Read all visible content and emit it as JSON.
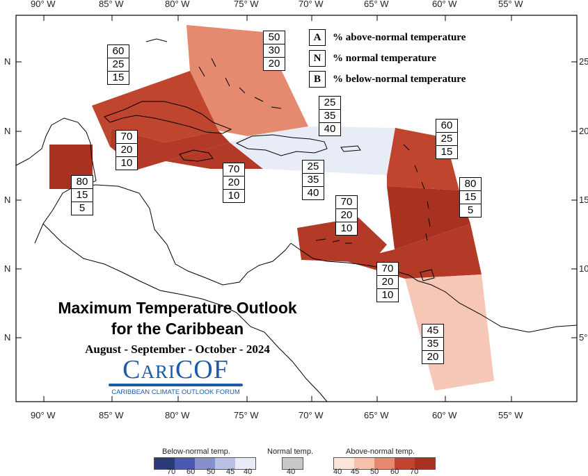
{
  "map": {
    "lon_labels": [
      "90° W",
      "85° W",
      "80° W",
      "75° W",
      "70° W",
      "65° W",
      "60° W",
      "55° W"
    ],
    "lat_left_labels": [
      "N",
      "N",
      "N",
      "N",
      "N"
    ],
    "lat_right_labels": [
      "25°",
      "20°",
      "15°",
      "10°",
      "5°"
    ]
  },
  "regions": [
    {
      "id": "bahamas",
      "A": "50",
      "N": "30",
      "B": "20",
      "color": "#e58a6e"
    },
    {
      "id": "cuba-west",
      "A": "60",
      "N": "25",
      "B": "15",
      "color": "#c0452e"
    },
    {
      "id": "cuba-central",
      "A": "70",
      "N": "20",
      "B": "10",
      "color": "#b23a26"
    },
    {
      "id": "jamaica",
      "A": "70",
      "N": "20",
      "B": "10",
      "color": "#b23a26"
    },
    {
      "id": "hispaniola-north",
      "A": "25",
      "N": "35",
      "B": "40",
      "color": "#e8ecf7"
    },
    {
      "id": "hispaniola-south",
      "A": "25",
      "N": "35",
      "B": "40",
      "color": "#e8ecf7"
    },
    {
      "id": "leeward",
      "A": "60",
      "N": "25",
      "B": "15",
      "color": "#c0452e"
    },
    {
      "id": "windward",
      "A": "80",
      "N": "15",
      "B": "5",
      "color": "#a9311f"
    },
    {
      "id": "belize",
      "A": "80",
      "N": "15",
      "B": "5",
      "color": "#a9311f"
    },
    {
      "id": "abc",
      "A": "70",
      "N": "20",
      "B": "10",
      "color": "#b23a26"
    },
    {
      "id": "trinidad",
      "A": "70",
      "N": "20",
      "B": "10",
      "color": "#b23a26"
    },
    {
      "id": "guianas",
      "A": "45",
      "N": "35",
      "B": "20",
      "color": "#f6c7b6"
    }
  ],
  "key": {
    "A": {
      "letter": "A",
      "text": "% above-normal temperature"
    },
    "N": {
      "letter": "N",
      "text": "% normal temperature"
    },
    "B": {
      "letter": "B",
      "text": "% below-normal temperature"
    }
  },
  "title": {
    "line1": "Maximum Temperature Outlook",
    "line2": "for the Caribbean",
    "period": "August - September - October - 2024"
  },
  "logo": {
    "name": "CariCOF",
    "subtitle": "CARIBBEAN CLIMATE OUTLOOK FORUM"
  },
  "colorbar": {
    "below_title": "Below-normal temp.",
    "normal_title": "Normal temp.",
    "above_title": "Above-normal temp.",
    "below_ticks": [
      "70",
      "60",
      "50",
      "45",
      "40"
    ],
    "normal_ticks": [
      "40"
    ],
    "above_ticks": [
      "40",
      "45",
      "50",
      "60",
      "70"
    ],
    "below_colors": [
      "#2c3a78",
      "#4a5ab0",
      "#8590cc",
      "#b9c0e3",
      "#e9ecf7"
    ],
    "normal_color": "#c8c8c8",
    "above_colors": [
      "#fbe4da",
      "#f6c2ae",
      "#e58a6e",
      "#c0452e",
      "#a9311f"
    ]
  }
}
